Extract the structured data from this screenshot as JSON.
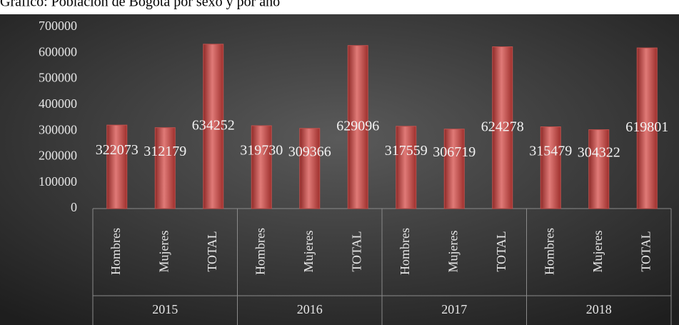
{
  "chart_data": {
    "type": "bar",
    "title": "Gráfico: Población de Bogotá por sexo y por año",
    "groups": [
      "2015",
      "2016",
      "2017",
      "2018"
    ],
    "categories": [
      "Hombres",
      "Mujeres",
      "TOTAL",
      "Hombres",
      "Mujeres",
      "TOTAL",
      "Hombres",
      "Mujeres",
      "TOTAL",
      "Hombres",
      "Mujeres",
      "TOTAL"
    ],
    "values": [
      322073,
      312179,
      634252,
      319730,
      309366,
      629096,
      317559,
      306719,
      624278,
      315479,
      304322,
      619801
    ],
    "color": "#c0504d",
    "ylim": [
      0,
      700000
    ],
    "yticks": [
      0,
      100000,
      200000,
      300000,
      400000,
      500000,
      600000,
      700000
    ]
  }
}
